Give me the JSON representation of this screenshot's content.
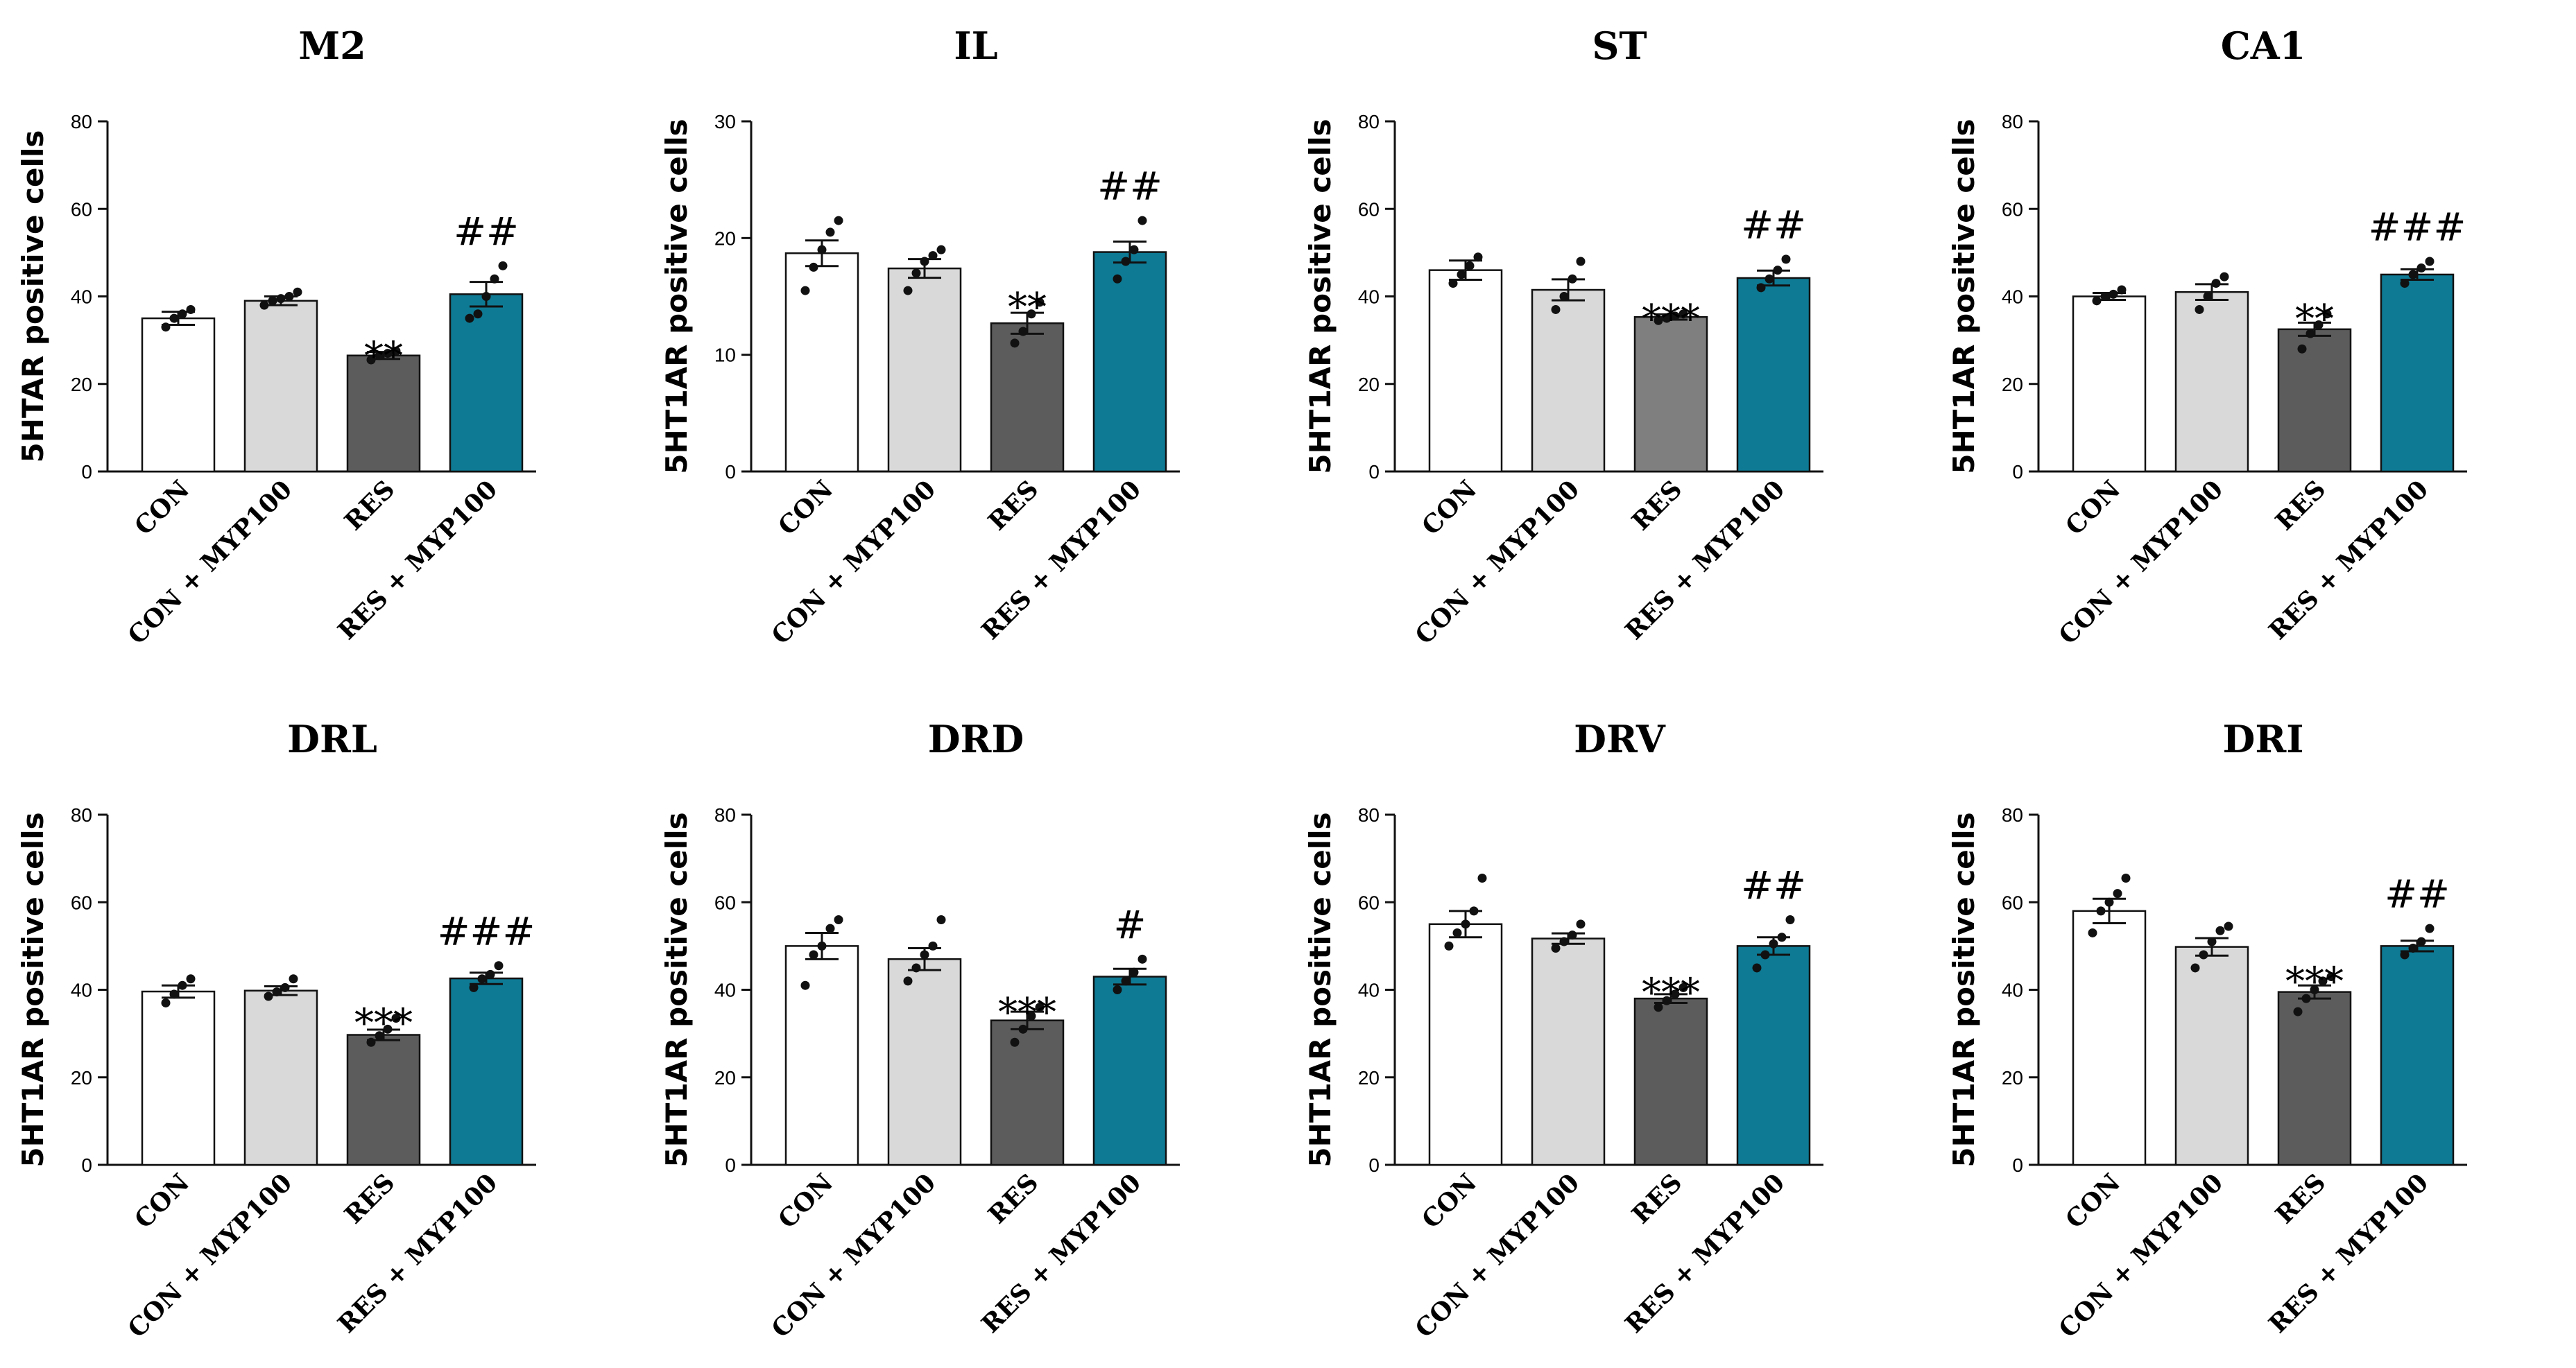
{
  "colors": {
    "CON": "#ffffff",
    "CON + MYP100": "#d9d9d9",
    "RES": "#5c5c5c",
    "RES + MYP100": "#0e7a94",
    "RES_ST": "#7f7f7f",
    "axis": "#111111",
    "dot": "#111111"
  },
  "chart_data": [
    {
      "type": "bar",
      "title": "M2",
      "ylabel": "5HTAR positive cells",
      "ylim": [
        0,
        80
      ],
      "yticks": [
        "0",
        "20",
        "40",
        "60",
        "80"
      ],
      "categories": [
        "CON",
        "CON + MYP100",
        "RES",
        "RES + MYP100"
      ],
      "values": [
        35,
        39,
        26.5,
        40.5
      ],
      "sem": [
        1.5,
        1.0,
        0.8,
        2.8
      ],
      "points": [
        [
          33,
          35,
          36,
          37
        ],
        [
          38,
          39,
          39.5,
          40,
          41
        ],
        [
          25.5,
          26.5,
          27,
          27.5
        ],
        [
          35,
          36,
          40,
          44,
          47
        ]
      ],
      "significance": [
        "",
        "",
        "**",
        "##"
      ]
    },
    {
      "type": "bar",
      "title": "IL",
      "ylabel": "5HT1AR positive cells",
      "ylim": [
        0,
        30
      ],
      "yticks": [
        "0",
        "10",
        "20",
        "30"
      ],
      "categories": [
        "CON",
        "CON + MYP100",
        "RES",
        "RES + MYP100"
      ],
      "values": [
        18.7,
        17.4,
        12.7,
        18.8
      ],
      "sem": [
        1.1,
        0.8,
        0.9,
        0.9
      ],
      "points": [
        [
          15.5,
          17.5,
          19,
          20.5,
          21.5
        ],
        [
          15.5,
          17,
          18,
          18.5,
          19
        ],
        [
          11,
          12,
          13.5,
          14.5
        ],
        [
          16.5,
          18,
          19,
          21.5
        ]
      ],
      "significance": [
        "",
        "",
        "**",
        "##"
      ]
    },
    {
      "type": "bar",
      "title": "ST",
      "ylabel": "5HT1AR positive cells",
      "ylim": [
        0,
        80
      ],
      "yticks": [
        "0",
        "20",
        "40",
        "60",
        "80"
      ],
      "categories": [
        "CON",
        "CON + MYP100",
        "RES",
        "RES + MYP100"
      ],
      "values": [
        46,
        41.5,
        35.3,
        44.2
      ],
      "sem": [
        2.2,
        2.4,
        0.6,
        1.7
      ],
      "points": [
        [
          43,
          45,
          47,
          49
        ],
        [
          37,
          40,
          44,
          48
        ],
        [
          34.5,
          35,
          35.5,
          36
        ],
        [
          42,
          44,
          46,
          48.5
        ]
      ],
      "significance": [
        "",
        "",
        "***",
        "##"
      ]
    },
    {
      "type": "bar",
      "title": "CA1",
      "ylabel": "5HT1AR positive cells",
      "ylim": [
        0,
        80
      ],
      "yticks": [
        "0",
        "20",
        "40",
        "60",
        "80"
      ],
      "categories": [
        "CON",
        "CON + MYP100",
        "RES",
        "RES + MYP100"
      ],
      "values": [
        40,
        41,
        32.5,
        45
      ],
      "sem": [
        0.8,
        1.8,
        1.5,
        1.2
      ],
      "points": [
        [
          39,
          40,
          40.5,
          41.5
        ],
        [
          37,
          40,
          43,
          44.5
        ],
        [
          28,
          31.5,
          33.5,
          36
        ],
        [
          43,
          45,
          46.5,
          48
        ]
      ],
      "significance": [
        "",
        "",
        "**",
        "###"
      ]
    },
    {
      "type": "bar",
      "title": "DRL",
      "ylabel": "5HT1AR positive cells",
      "ylim": [
        0,
        80
      ],
      "yticks": [
        "0",
        "20",
        "40",
        "60",
        "80"
      ],
      "categories": [
        "CON",
        "CON + MYP100",
        "RES",
        "RES + MYP100"
      ],
      "values": [
        39.6,
        39.8,
        29.7,
        42.6
      ],
      "sem": [
        1.4,
        1.0,
        1.2,
        1.3
      ],
      "points": [
        [
          37,
          39,
          41,
          42.5
        ],
        [
          38.5,
          39.5,
          40.5,
          42.5
        ],
        [
          28,
          29.5,
          31,
          33.5
        ],
        [
          40.5,
          42.5,
          43.5,
          45.5
        ]
      ],
      "significance": [
        "",
        "",
        "***",
        "###"
      ]
    },
    {
      "type": "bar",
      "title": "DRD",
      "ylabel": "5HT1AR  positive cells",
      "ylim": [
        0,
        80
      ],
      "yticks": [
        "0",
        "20",
        "40",
        "60",
        "80"
      ],
      "categories": [
        "CON",
        "CON + MYP100",
        "RES",
        "RES + MYP100"
      ],
      "values": [
        50,
        47,
        33,
        43
      ],
      "sem": [
        3.0,
        2.5,
        2.0,
        1.8
      ],
      "points": [
        [
          41,
          48,
          50,
          54,
          56
        ],
        [
          42,
          45,
          48,
          50,
          56
        ],
        [
          28,
          31,
          34,
          36
        ],
        [
          40,
          42,
          44,
          47
        ]
      ],
      "significance": [
        "",
        "",
        "***",
        "#"
      ]
    },
    {
      "type": "bar",
      "title": "DRV",
      "ylabel": "5HT1AR  positive cells",
      "ylim": [
        0,
        80
      ],
      "yticks": [
        "0",
        "20",
        "40",
        "60",
        "80"
      ],
      "categories": [
        "CON",
        "CON + MYP100",
        "RES",
        "RES + MYP100"
      ],
      "values": [
        55,
        51.7,
        38,
        50
      ],
      "sem": [
        3.0,
        1.2,
        1.0,
        2.0
      ],
      "points": [
        [
          50,
          53,
          55,
          58,
          65.5
        ],
        [
          49.5,
          51,
          52.5,
          55
        ],
        [
          36,
          37.5,
          39,
          40.5
        ],
        [
          45,
          48,
          50.5,
          52,
          56
        ]
      ],
      "significance": [
        "",
        "",
        "***",
        "##"
      ]
    },
    {
      "type": "bar",
      "title": "DRI",
      "ylabel": "5HT1AR  positive cells",
      "ylim": [
        0,
        80
      ],
      "yticks": [
        "0",
        "20",
        "40",
        "60",
        "80"
      ],
      "categories": [
        "CON",
        "CON + MYP100",
        "RES",
        "RES + MYP100"
      ],
      "values": [
        58,
        49.8,
        39.5,
        50
      ],
      "sem": [
        2.8,
        2.0,
        1.5,
        1.2
      ],
      "points": [
        [
          53,
          58,
          60,
          62,
          65.5
        ],
        [
          45,
          48,
          51,
          53.5,
          54.5
        ],
        [
          35,
          38,
          40,
          42,
          43
        ],
        [
          48,
          49.5,
          51,
          54
        ]
      ],
      "significance": [
        "",
        "",
        "***",
        "##"
      ]
    }
  ]
}
